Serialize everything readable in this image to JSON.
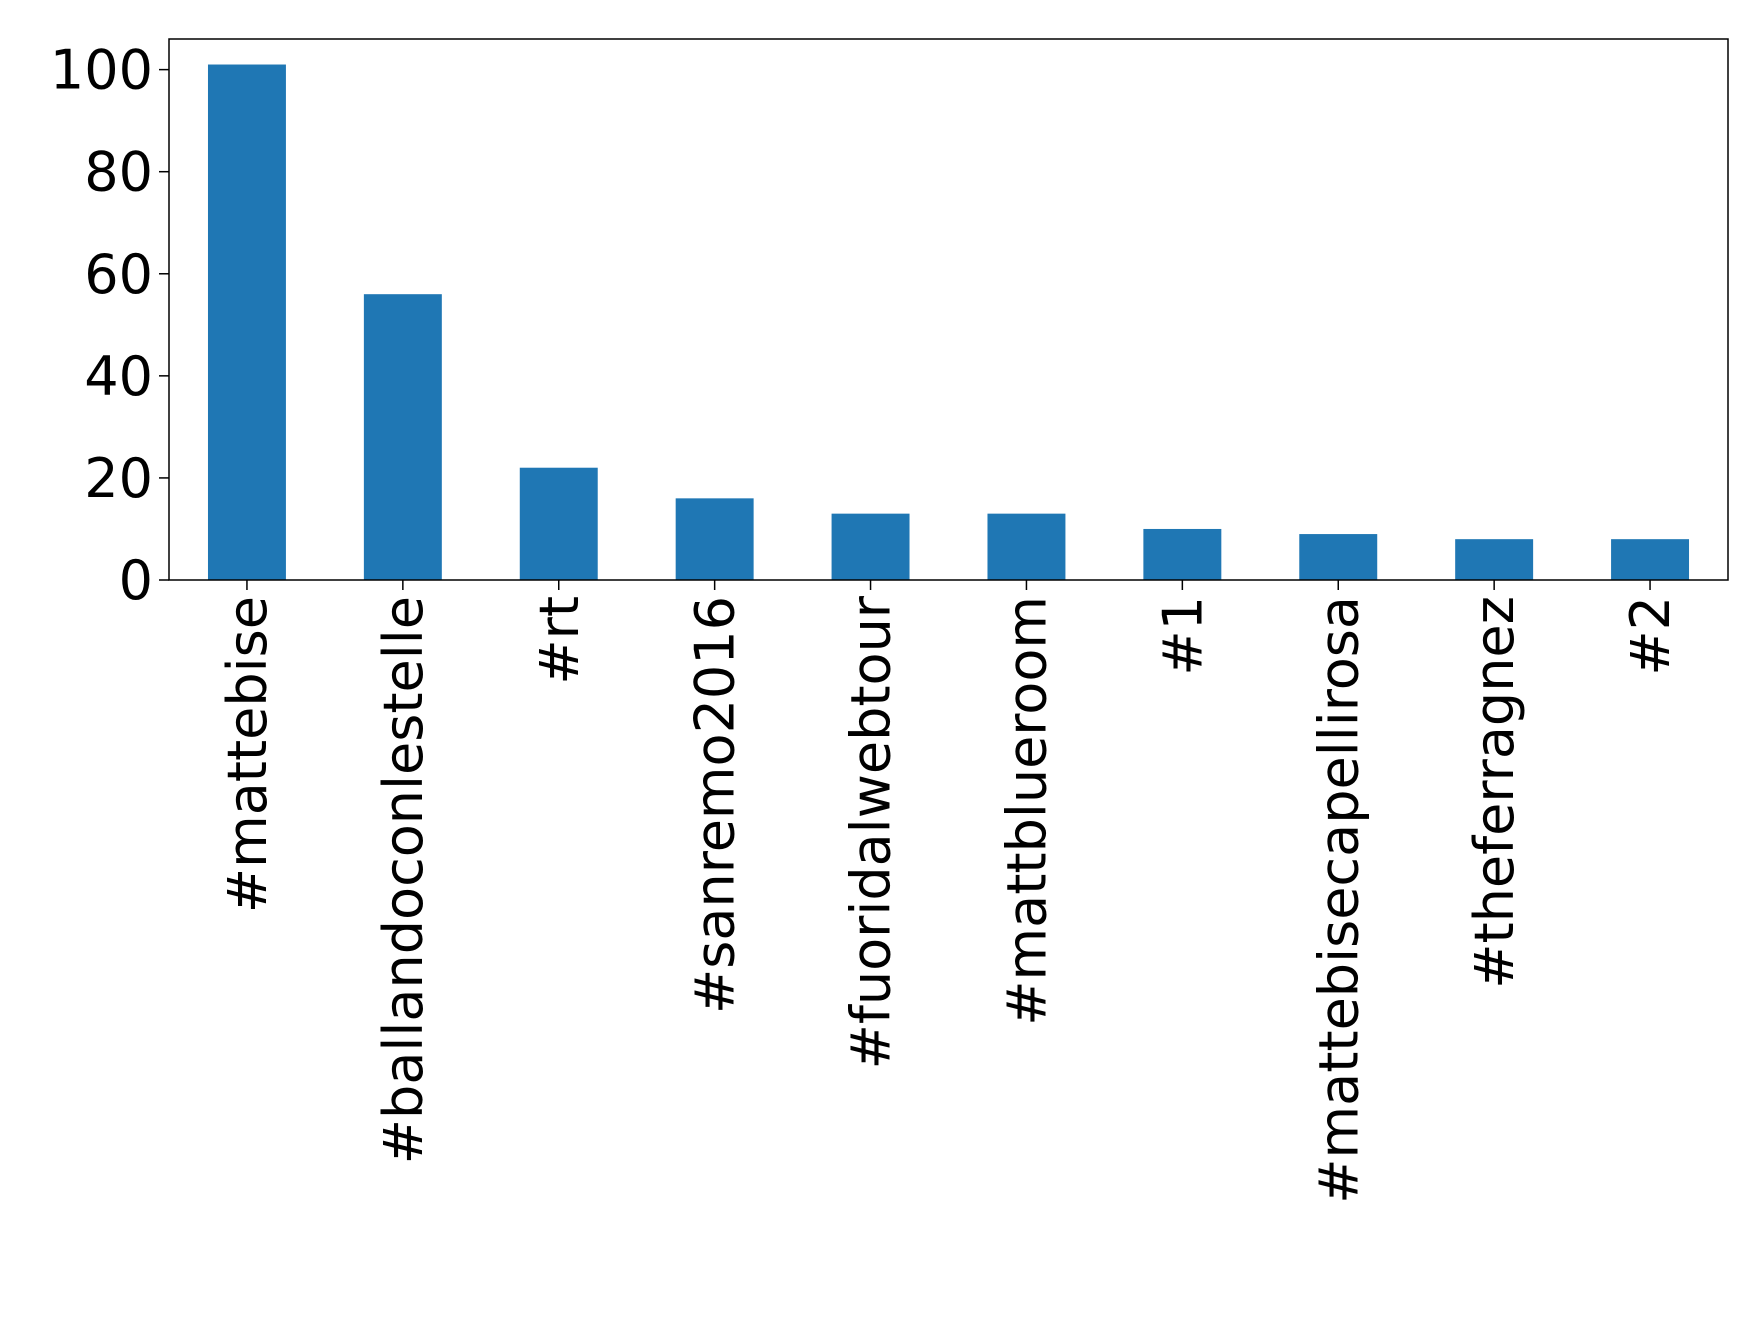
{
  "chart_data": {
    "type": "bar",
    "categories": [
      "#mattebise",
      "#ballandoconlestelle",
      "#rt",
      "#sanremo2016",
      "#fuoridalwebtour",
      "#mattblueroom",
      "#1",
      "#mattebisecapellirosa",
      "#theferragnez",
      "#2"
    ],
    "values": [
      101,
      56,
      22,
      16,
      13,
      13,
      10,
      9,
      8,
      8
    ],
    "color": "#1f77b4",
    "ylim": [
      0,
      106
    ],
    "yticks": [
      0,
      20,
      40,
      60,
      80,
      100
    ],
    "grid": false
  }
}
